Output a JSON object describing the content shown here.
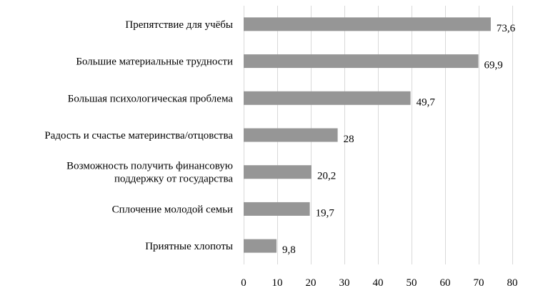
{
  "chart_data": {
    "type": "bar",
    "orientation": "horizontal",
    "categories": [
      [
        "Препятствие для учёбы"
      ],
      [
        "Большие материальные трудности"
      ],
      [
        "Большая психологическая проблема"
      ],
      [
        "Радость и счастье материнства/отцовства"
      ],
      [
        "Возможность получить финансовую",
        "поддержку от государства"
      ],
      [
        "Сплочение молодой семьи"
      ],
      [
        "Приятные хлопоты"
      ]
    ],
    "values": [
      73.6,
      69.9,
      49.7,
      28,
      20.2,
      19.7,
      9.8
    ],
    "value_labels": [
      "73,6",
      "69,9",
      "49,7",
      "28",
      "20,2",
      "19,7",
      "9,8"
    ],
    "xlim": [
      0,
      80
    ],
    "xticks": [
      0,
      10,
      20,
      30,
      40,
      50,
      60,
      70,
      80
    ],
    "grid": true,
    "colors": {
      "bar": "#969696",
      "grid": "#d9d9d9",
      "text": "#000000"
    }
  }
}
